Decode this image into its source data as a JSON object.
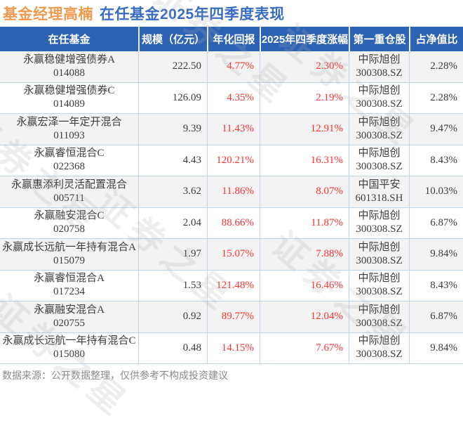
{
  "page": {
    "title_manager": "基金经理高楠",
    "title_rest": "在任基金2025年四季度表现",
    "footer": "数据来源：公开数据整理，仅供参考不构成投资建议",
    "watermark": "证券之星"
  },
  "colors": {
    "title_orange": "#f09a50",
    "title_blue": "#3a6cc3",
    "header_bg": "#2d63b5",
    "row_alt_bg": "#f3f3f3",
    "grid_line": "#bed5eb",
    "negative_red": "#fa3232",
    "body_text": "#3c3c3c",
    "footer_gray": "#8a8a8a"
  },
  "chart_data": {
    "type": "table",
    "title": "基金经理高楠 在任基金2025年四季度表现",
    "source_note": "数据来源：公开数据整理，仅供参考不构成投资建议",
    "columns": [
      "在任基金",
      "规模（亿元）",
      "年化回报",
      "2025年四季度涨幅",
      "第一重仓股",
      "占净值比"
    ],
    "rows": [
      {
        "fund": "永赢稳健增强债券A",
        "code": "014088",
        "scale": "222.50",
        "annual": "4.77%",
        "q4": "2.30%",
        "stock": "中际旭创",
        "stock_code": "300308.SZ",
        "weight": "2.28%"
      },
      {
        "fund": "永赢稳健增强债券C",
        "code": "014089",
        "scale": "126.09",
        "annual": "4.35%",
        "q4": "2.19%",
        "stock": "中际旭创",
        "stock_code": "300308.SZ",
        "weight": "2.28%"
      },
      {
        "fund": "永赢宏泽一年定开混合",
        "code": "011093",
        "scale": "9.39",
        "annual": "11.43%",
        "q4": "12.91%",
        "stock": "中际旭创",
        "stock_code": "300308.SZ",
        "weight": "9.47%"
      },
      {
        "fund": "永赢睿恒混合C",
        "code": "022368",
        "scale": "4.43",
        "annual": "120.21%",
        "q4": "16.31%",
        "stock": "中际旭创",
        "stock_code": "300308.SZ",
        "weight": "8.43%"
      },
      {
        "fund": "永赢惠添利灵活配置混合",
        "code": "005711",
        "scale": "3.62",
        "annual": "11.86%",
        "q4": "8.07%",
        "stock": "中国平安",
        "stock_code": "601318.SH",
        "weight": "10.03%"
      },
      {
        "fund": "永赢融安混合C",
        "code": "020758",
        "scale": "2.04",
        "annual": "88.66%",
        "q4": "11.87%",
        "stock": "中际旭创",
        "stock_code": "300308.SZ",
        "weight": "6.87%"
      },
      {
        "fund": "永赢成长远航一年持有混合A",
        "code": "015079",
        "scale": "1.97",
        "annual": "15.07%",
        "q4": "7.88%",
        "stock": "中际旭创",
        "stock_code": "300308.SZ",
        "weight": "9.84%"
      },
      {
        "fund": "永赢睿恒混合A",
        "code": "017234",
        "scale": "1.53",
        "annual": "121.48%",
        "q4": "16.46%",
        "stock": "中际旭创",
        "stock_code": "300308.SZ",
        "weight": "8.43%"
      },
      {
        "fund": "永赢融安混合A",
        "code": "020755",
        "scale": "0.92",
        "annual": "89.77%",
        "q4": "12.04%",
        "stock": "中际旭创",
        "stock_code": "300308.SZ",
        "weight": "6.87%"
      },
      {
        "fund": "永赢成长远航一年持有混合C",
        "code": "015080",
        "scale": "0.48",
        "annual": "14.15%",
        "q4": "7.67%",
        "stock": "中际旭创",
        "stock_code": "300308.SZ",
        "weight": "9.84%"
      }
    ]
  }
}
